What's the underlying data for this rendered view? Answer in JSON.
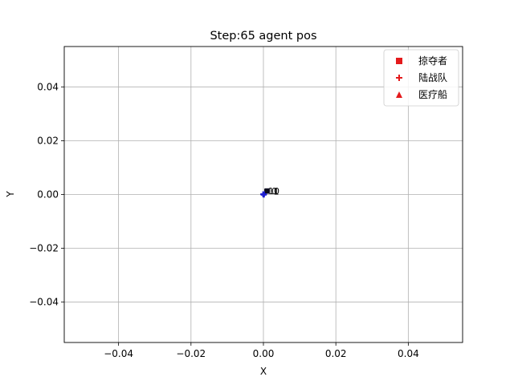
{
  "chart_data": {
    "type": "scatter",
    "title": "Step:65  agent pos",
    "xlabel": "X",
    "ylabel": "Y",
    "xlim": [
      -0.055,
      0.055
    ],
    "ylim": [
      -0.055,
      0.055
    ],
    "xticks": [
      -0.04,
      -0.02,
      0.0,
      0.02,
      0.04
    ],
    "yticks": [
      -0.04,
      -0.02,
      0.0,
      0.02,
      0.04
    ],
    "xtick_labels": [
      "−0.04",
      "−0.02",
      "0.00",
      "0.02",
      "0.04"
    ],
    "ytick_labels": [
      "−0.04",
      "−0.02",
      "0.00",
      "0.02",
      "0.04"
    ],
    "grid": true,
    "legend_position": "top-right",
    "legend": [
      {
        "label": "掠夺者",
        "marker": "square",
        "color": "#e41a1c"
      },
      {
        "label": "陆战队",
        "marker": "plus",
        "color": "#e41a1c"
      },
      {
        "label": "医疗船",
        "marker": "triangle",
        "color": "#e41a1c"
      }
    ],
    "series": [
      {
        "name": "掠夺者",
        "marker": "square",
        "color": "#0b0b1e",
        "points": [
          [
            0.0009,
            0.0013
          ],
          [
            0.0011,
            0.0014
          ],
          [
            0.001,
            0.0012
          ]
        ],
        "point_labels": [
          "10",
          "0",
          "1"
        ]
      },
      {
        "name": "陆战队",
        "marker": "plus",
        "color": "#1f1fd0",
        "points": [
          [
            0.0,
            0.0
          ],
          [
            0.0002,
            0.0001
          ],
          [
            -0.0001,
            0.0001
          ],
          [
            0.0001,
            -0.0001
          ]
        ],
        "point_labels": []
      }
    ]
  }
}
